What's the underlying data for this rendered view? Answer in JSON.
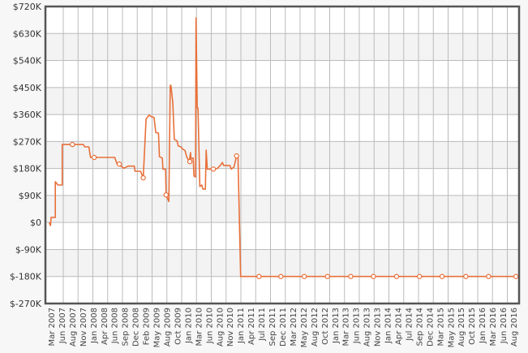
{
  "chart_data": {
    "type": "line",
    "title": "",
    "xlabel": "",
    "ylabel": "",
    "x_range": [
      "2007-02-01",
      "2016-09-07"
    ],
    "ylim": [
      -270000,
      720000
    ],
    "y_ticks": [
      {
        "value": 720000,
        "label": "$720K"
      },
      {
        "value": 630000,
        "label": "$630K"
      },
      {
        "value": 540000,
        "label": "$540K"
      },
      {
        "value": 450000,
        "label": "$450K"
      },
      {
        "value": 360000,
        "label": "$360K"
      },
      {
        "value": 270000,
        "label": "$270K"
      },
      {
        "value": 180000,
        "label": "$180K"
      },
      {
        "value": 90000,
        "label": "$90K"
      },
      {
        "value": 0,
        "label": "$0"
      },
      {
        "value": -90000,
        "label": "$-90K"
      },
      {
        "value": -180000,
        "label": "$-180K"
      },
      {
        "value": -270000,
        "label": "$-270K"
      }
    ],
    "x_ticks": [
      {
        "date": "2007-03-01",
        "label": "Mar 2007"
      },
      {
        "date": "2007-06-01",
        "label": "Jun 2007"
      },
      {
        "date": "2007-08-01",
        "label": "Aug 2007"
      },
      {
        "date": "2007-11-01",
        "label": "Nov 2007"
      },
      {
        "date": "2008-01-01",
        "label": "Jan 2008"
      },
      {
        "date": "2008-04-01",
        "label": "Apr 2008"
      },
      {
        "date": "2008-06-01",
        "label": "Jun 2008"
      },
      {
        "date": "2008-09-01",
        "label": "Sep 2008"
      },
      {
        "date": "2008-12-01",
        "label": "Dec 2008"
      },
      {
        "date": "2009-02-01",
        "label": "Feb 2009"
      },
      {
        "date": "2009-05-01",
        "label": "May 2009"
      },
      {
        "date": "2009-08-01",
        "label": "Aug 2009"
      },
      {
        "date": "2009-10-01",
        "label": "Oct 2009"
      },
      {
        "date": "2010-01-01",
        "label": "Jan 2010"
      },
      {
        "date": "2010-03-01",
        "label": "Mar 2010"
      },
      {
        "date": "2010-06-01",
        "label": "Jun 2010"
      },
      {
        "date": "2010-08-01",
        "label": "Aug 2010"
      },
      {
        "date": "2010-11-01",
        "label": "Nov 2010"
      },
      {
        "date": "2011-01-01",
        "label": "Jan 2011"
      },
      {
        "date": "2011-04-01",
        "label": "Apr 2011"
      },
      {
        "date": "2011-07-01",
        "label": "Jul 2011"
      },
      {
        "date": "2011-09-01",
        "label": "Sep 2011"
      },
      {
        "date": "2011-12-01",
        "label": "Dec 2011"
      },
      {
        "date": "2012-03-01",
        "label": "Mar 2012"
      },
      {
        "date": "2012-05-01",
        "label": "May 2012"
      },
      {
        "date": "2012-08-01",
        "label": "Aug 2012"
      },
      {
        "date": "2012-10-01",
        "label": "Oct 2012"
      },
      {
        "date": "2013-01-01",
        "label": "Jan 2013"
      },
      {
        "date": "2013-03-01",
        "label": "Mar 2013"
      },
      {
        "date": "2013-06-01",
        "label": "Jun 2013"
      },
      {
        "date": "2013-08-01",
        "label": "Aug 2013"
      },
      {
        "date": "2013-11-01",
        "label": "Nov 2013"
      },
      {
        "date": "2014-01-01",
        "label": "Jan 2014"
      },
      {
        "date": "2014-04-01",
        "label": "Apr 2014"
      },
      {
        "date": "2014-07-01",
        "label": "Jul 2014"
      },
      {
        "date": "2014-09-01",
        "label": "Sep 2014"
      },
      {
        "date": "2014-12-01",
        "label": "Dec 2014"
      },
      {
        "date": "2015-03-01",
        "label": "Mar 2015"
      },
      {
        "date": "2015-05-01",
        "label": "May 2015"
      },
      {
        "date": "2015-08-01",
        "label": "Aug 2015"
      },
      {
        "date": "2015-10-01",
        "label": "Oct 2015"
      },
      {
        "date": "2016-01-01",
        "label": "Jan 2016"
      },
      {
        "date": "2016-03-01",
        "label": "Mar 2016"
      },
      {
        "date": "2016-06-01",
        "label": "Jun 2016"
      },
      {
        "date": "2016-08-01",
        "label": "Aug 2016"
      }
    ],
    "grid": true,
    "legend": "none",
    "colors": {
      "line": "#e8703a",
      "grid": "#bbbbbb",
      "band": "#f3f3f3",
      "border": "#555555"
    },
    "series": [
      {
        "points": [
          [
            "2007-03-01",
            0
          ],
          [
            "2007-03-10",
            -10000
          ],
          [
            "2007-03-15",
            17000
          ],
          [
            "2007-04-15",
            17000
          ],
          [
            "2007-04-15",
            136000
          ],
          [
            "2007-05-05",
            125000
          ],
          [
            "2007-06-05",
            125000
          ],
          [
            "2007-06-05",
            260000
          ],
          [
            "2007-11-08",
            260000
          ],
          [
            "2007-11-20",
            252000
          ],
          [
            "2007-12-20",
            252000
          ],
          [
            "2008-01-01",
            217000
          ],
          [
            "2008-06-28",
            217000
          ],
          [
            "2008-07-15",
            195000
          ],
          [
            "2008-08-05",
            190000
          ],
          [
            "2008-09-05",
            181000
          ],
          [
            "2008-10-05",
            188000
          ],
          [
            "2008-11-20",
            188000
          ],
          [
            "2008-11-25",
            171000
          ],
          [
            "2009-01-05",
            171000
          ],
          [
            "2009-01-25",
            149000
          ],
          [
            "2009-02-15",
            345000
          ],
          [
            "2009-03-10",
            358000
          ],
          [
            "2009-03-25",
            353000
          ],
          [
            "2009-04-15",
            350000
          ],
          [
            "2009-04-28",
            300000
          ],
          [
            "2009-05-18",
            298000
          ],
          [
            "2009-05-25",
            219000
          ],
          [
            "2009-06-15",
            215000
          ],
          [
            "2009-06-20",
            178000
          ],
          [
            "2009-07-10",
            178000
          ],
          [
            "2009-07-13",
            92000
          ],
          [
            "2009-08-03",
            70000
          ],
          [
            "2009-08-13",
            457000
          ],
          [
            "2009-08-18",
            457000
          ],
          [
            "2009-09-01",
            398000
          ],
          [
            "2009-09-12",
            277000
          ],
          [
            "2009-10-01",
            273000
          ],
          [
            "2009-10-12",
            255000
          ],
          [
            "2009-11-01",
            252000
          ],
          [
            "2009-11-12",
            245000
          ],
          [
            "2009-12-01",
            240000
          ],
          [
            "2009-12-12",
            219000
          ],
          [
            "2010-01-01",
            203000
          ],
          [
            "2010-01-10",
            233000
          ],
          [
            "2010-01-14",
            212000
          ],
          [
            "2010-01-30",
            215000
          ],
          [
            "2010-02-04",
            155000
          ],
          [
            "2010-02-16",
            152000
          ],
          [
            "2010-02-20",
            682000
          ],
          [
            "2010-03-01",
            382000
          ],
          [
            "2010-03-06",
            382000
          ],
          [
            "2010-03-20",
            120000
          ],
          [
            "2010-04-03",
            125000
          ],
          [
            "2010-04-12",
            111000
          ],
          [
            "2010-04-30",
            111000
          ],
          [
            "2010-05-06",
            241000
          ],
          [
            "2010-05-14",
            178000
          ],
          [
            "2010-07-01",
            178000
          ],
          [
            "2010-07-28",
            180000
          ],
          [
            "2010-08-18",
            190000
          ],
          [
            "2010-09-03",
            200000
          ],
          [
            "2010-09-12",
            190000
          ],
          [
            "2010-10-28",
            190000
          ],
          [
            "2010-11-08",
            178000
          ],
          [
            "2010-11-28",
            185000
          ],
          [
            "2010-12-17",
            222000
          ],
          [
            "2010-12-27",
            222000
          ],
          [
            "2011-01-16",
            -180000
          ],
          [
            "2016-08-20",
            -180000
          ]
        ],
        "markers": [
          [
            "2007-08-20",
            260000
          ],
          [
            "2008-01-28",
            217000
          ],
          [
            "2008-08-01",
            195000
          ],
          [
            "2009-01-25",
            149000
          ],
          [
            "2009-07-13",
            92000
          ],
          [
            "2010-01-05",
            203000
          ],
          [
            "2010-06-28",
            178000
          ],
          [
            "2010-12-17",
            222000
          ],
          [
            "2011-06-01",
            -180000
          ],
          [
            "2011-11-10",
            -180000
          ],
          [
            "2012-05-01",
            -180000
          ],
          [
            "2012-10-20",
            -180000
          ],
          [
            "2013-04-10",
            -180000
          ],
          [
            "2013-09-25",
            -180000
          ],
          [
            "2014-03-15",
            -180000
          ],
          [
            "2014-09-01",
            -180000
          ],
          [
            "2015-02-15",
            -180000
          ],
          [
            "2015-08-10",
            -180000
          ],
          [
            "2016-01-25",
            -180000
          ],
          [
            "2016-08-15",
            -180000
          ]
        ]
      }
    ]
  }
}
